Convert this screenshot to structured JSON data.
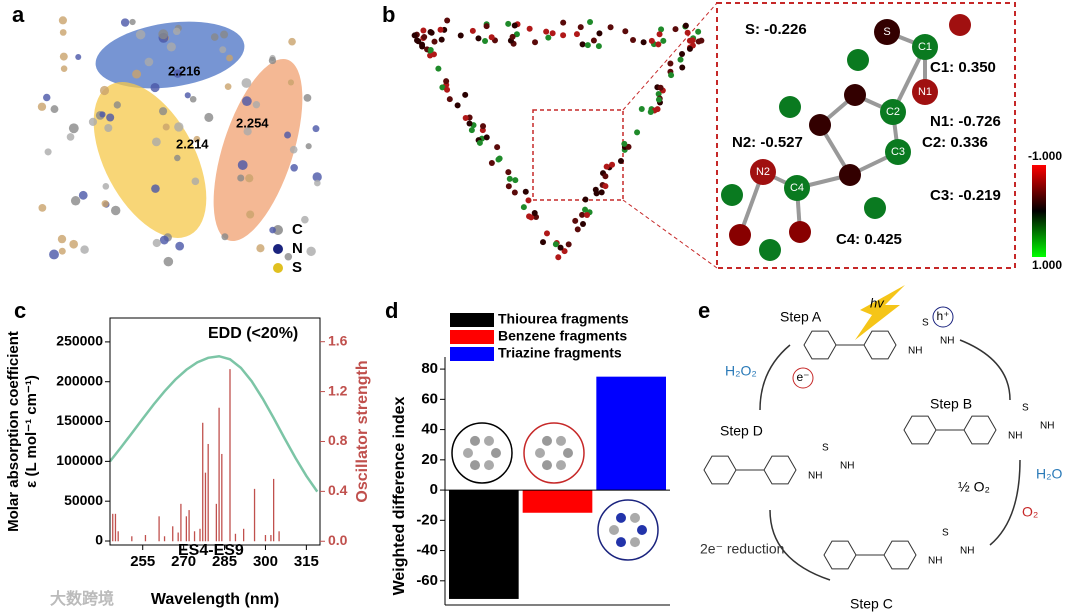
{
  "panel_labels": [
    "a",
    "b",
    "c",
    "d",
    "e"
  ],
  "panel_a": {
    "distances": [
      "2.216",
      "2.254",
      "2.214"
    ],
    "legend": [
      "C",
      "N",
      "S"
    ]
  },
  "panel_b": {
    "atoms": [
      "S",
      "C1",
      "N1",
      "C2",
      "C3",
      "N2",
      "C4"
    ],
    "charges": [
      "S: -0.226",
      "C1: 0.350",
      "N1: -0.726",
      "C2: 0.336",
      "N2: -0.527",
      "C3: -0.219",
      "C4: 0.425"
    ],
    "colorbar": [
      "-1.000",
      "1.000"
    ]
  },
  "panel_e": {
    "steps": [
      "Step A",
      "Step B",
      "Step C",
      "Step D"
    ],
    "light": "hv",
    "species": [
      "H₂O₂",
      "½ O₂",
      "H₂O",
      "O₂",
      "2e⁻ reduction"
    ],
    "carriers": [
      "h⁺",
      "e⁻"
    ],
    "group_labels": [
      "S",
      "NH",
      "NH"
    ]
  },
  "watermark": "大数跨境",
  "chart_data": [
    {
      "type": "line",
      "xlabel": "Wavelength (nm)",
      "ylabel": [
        "Molar absorption coefficient",
        "ε (L mol⁻¹ cm⁻¹)"
      ],
      "y2label": "Oscillator strength",
      "annotations": [
        "EDD (<20%)",
        "ES4-ES9"
      ],
      "xlim": [
        243,
        320
      ],
      "xticks": [
        255,
        270,
        285,
        300,
        315
      ],
      "ylim": [
        -5000,
        280000
      ],
      "yticks": [
        0,
        50000,
        100000,
        150000,
        200000,
        250000
      ],
      "y2lim": [
        -0.03,
        1.79
      ],
      "y2ticks": [
        {
          "value": 0,
          "label": "0.0"
        },
        0.4,
        0.8,
        1.2,
        1.6
      ],
      "y2color": "#c0504d",
      "series": [
        {
          "color": "#7cc5a6",
          "x": [
            243,
            247,
            251,
            255,
            259,
            263,
            267,
            271,
            275,
            279,
            283,
            287,
            291,
            295,
            299,
            303,
            307,
            311,
            315,
            319
          ],
          "values": [
            100000,
            117400,
            135300,
            153500,
            171400,
            188000,
            202800,
            215000,
            224300,
            230000,
            232000,
            228200,
            217400,
            200400,
            178700,
            154400,
            129000,
            104400,
            81700,
            62000
          ]
        },
        {
          "color": "#c0504d",
          "axis": "y2",
          "mark": "stick",
          "x": [
            244,
            245,
            246,
            251,
            256,
            261,
            263,
            266,
            268,
            269,
            271,
            272,
            274,
            276,
            277,
            278,
            279,
            282,
            283,
            284,
            287,
            289,
            292,
            296,
            300,
            302,
            303,
            305
          ],
          "values": [
            0.22,
            0.22,
            0.08,
            0.04,
            0.05,
            0.2,
            0.04,
            0.12,
            0.07,
            0.3,
            0.2,
            0.25,
            0.08,
            0.1,
            0.95,
            0.55,
            0.78,
            0.3,
            1.07,
            0.7,
            1.38,
            0.06,
            0.1,
            0.42,
            0.05,
            0.05,
            0.5,
            0.08
          ]
        }
      ]
    },
    {
      "type": "bar",
      "ylabel": "Weighted difference index",
      "categories": [
        null
      ],
      "ylim": [
        -76,
        88
      ],
      "yticks": [
        80,
        60,
        40,
        20,
        0,
        -20,
        -40,
        -60
      ],
      "series": [
        {
          "name": "Thiourea fragments",
          "color": "#000000",
          "values": [
            -72
          ]
        },
        {
          "name": "Benzene fragments",
          "color": "#ff0000",
          "values": [
            -15
          ]
        },
        {
          "name": "Triazine fragments",
          "color": "#0000ff",
          "values": [
            75
          ]
        }
      ]
    }
  ]
}
